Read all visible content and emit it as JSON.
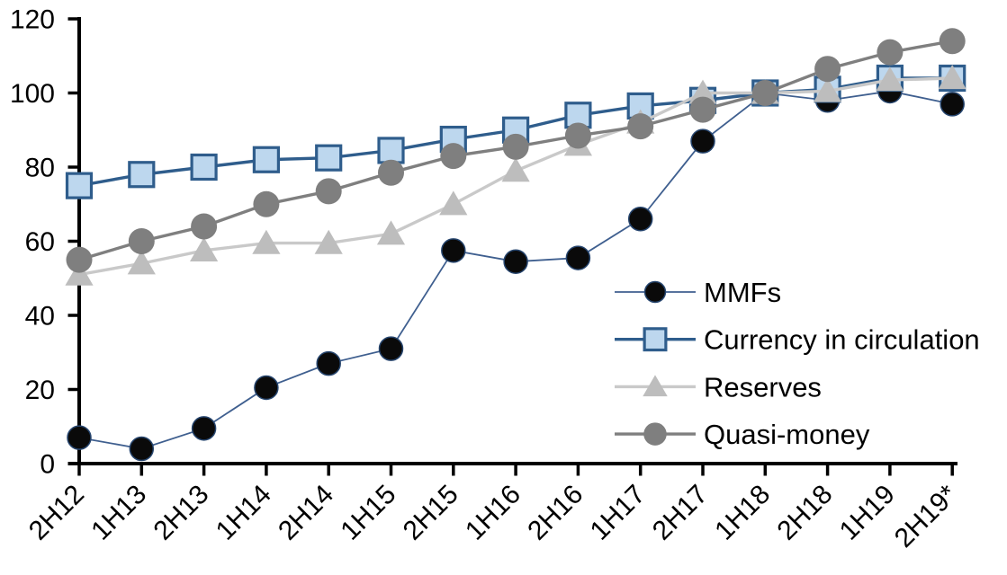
{
  "chart_data": {
    "type": "line",
    "title": "",
    "categories": [
      "2H12",
      "1H13",
      "2H13",
      "1H14",
      "2H14",
      "1H15",
      "2H15",
      "1H16",
      "2H16",
      "1H17",
      "2H17",
      "1H18",
      "2H18",
      "1H19",
      "2H19*"
    ],
    "series": [
      {
        "name": "MMFs",
        "marker": "circle",
        "marker_color": "#0a0a0a",
        "marker_border": "#26456e",
        "line_color": "#3f5f8f",
        "line_width": 1.8,
        "marker_size": 26,
        "values": [
          7,
          4,
          9.5,
          20.5,
          27,
          31,
          57.5,
          54.5,
          55.5,
          66,
          87,
          100,
          98,
          100.5,
          97
        ]
      },
      {
        "name": "Currency in circulation",
        "marker": "square",
        "marker_color": "#bdd7ee",
        "marker_border": "#2f5d8c",
        "line_color": "#2f5d8c",
        "line_width": 3.4,
        "marker_size": 27,
        "values": [
          75,
          78,
          80,
          82,
          82.5,
          84.5,
          87.5,
          90,
          94,
          96.5,
          98,
          100,
          101,
          104,
          104
        ]
      },
      {
        "name": "Reserves",
        "marker": "triangle",
        "marker_color": "#bdbdbd",
        "marker_border": "none",
        "line_color": "#c9c9c9",
        "line_width": 3.4,
        "marker_size": 30,
        "values": [
          51,
          54,
          57.5,
          59.5,
          59.5,
          62,
          70,
          79,
          86,
          92,
          100,
          100,
          100.5,
          103.5,
          104
        ]
      },
      {
        "name": "Quasi-money",
        "marker": "circle",
        "marker_color": "#7f7f7f",
        "marker_border": "none",
        "line_color": "#7f7f7f",
        "line_width": 3.4,
        "marker_size": 29,
        "values": [
          55,
          60,
          64,
          70,
          73.5,
          78.5,
          83,
          85.5,
          88.5,
          91,
          95.5,
          100,
          106.5,
          111,
          114
        ]
      }
    ],
    "y_axis": {
      "min": 0,
      "max": 120,
      "step": 20
    },
    "x_axis": {
      "label_rotation": -45
    },
    "legend": {
      "position": "inside-right",
      "entries": [
        "MMFs",
        "Currency in circulation",
        "Reserves",
        "Quasi-money"
      ]
    },
    "grid": false,
    "axis_color": "#000000"
  }
}
